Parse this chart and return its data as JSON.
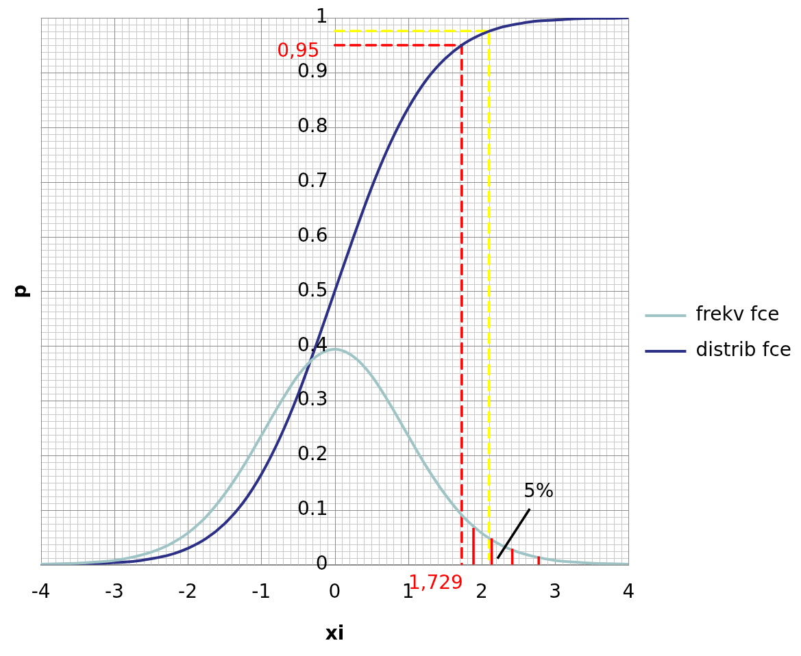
{
  "chart_data": {
    "type": "line",
    "xlabel": "xi",
    "ylabel": "p",
    "x": [
      -4,
      -3.75,
      -3.5,
      -3.25,
      -3,
      -2.75,
      -2.5,
      -2.25,
      -2,
      -1.75,
      -1.5,
      -1.25,
      -1,
      -0.75,
      -0.5,
      -0.25,
      0,
      0.25,
      0.5,
      0.75,
      1,
      1.25,
      1.5,
      1.75,
      2,
      2.25,
      2.5,
      2.75,
      3,
      3.25,
      3.5,
      3.75,
      4
    ],
    "series": [
      {
        "name": "frekv fce",
        "color": "#9fc4c6",
        "values": [
          0.001,
          0.002,
          0.003,
          0.005,
          0.008,
          0.014,
          0.023,
          0.037,
          0.058,
          0.088,
          0.129,
          0.179,
          0.236,
          0.294,
          0.346,
          0.381,
          0.394,
          0.381,
          0.346,
          0.294,
          0.236,
          0.179,
          0.129,
          0.088,
          0.058,
          0.037,
          0.023,
          0.014,
          0.008,
          0.005,
          0.003,
          0.002,
          0.001
        ]
      },
      {
        "name": "distrib fce",
        "color": "#2b2f86",
        "values": [
          0,
          0.001,
          0.001,
          0.002,
          0.004,
          0.006,
          0.011,
          0.018,
          0.03,
          0.048,
          0.075,
          0.113,
          0.165,
          0.231,
          0.311,
          0.403,
          0.5,
          0.597,
          0.689,
          0.769,
          0.835,
          0.887,
          0.925,
          0.952,
          0.97,
          0.982,
          0.989,
          0.994,
          0.996,
          0.998,
          0.999,
          0.999,
          1
        ]
      },
      {
        "color": "#ff0000",
        "line_style": "dashed",
        "x": [
          0,
          1.729,
          1.729
        ],
        "values": [
          0.95,
          0.95,
          0
        ]
      },
      {
        "color": "#ffff00",
        "line_style": "dashed",
        "x": [
          0,
          2.1,
          2.1
        ],
        "values": [
          0.976,
          0.976,
          0.01
        ]
      }
    ],
    "xlim": [
      -4,
      4
    ],
    "xticks": [
      -4,
      -3,
      -2,
      -1,
      0,
      1,
      2,
      3,
      4
    ],
    "ylim": [
      0,
      1
    ],
    "yticks": [
      0,
      0.1,
      0.2,
      0.3,
      0.4,
      0.5,
      0.6,
      0.7,
      0.8,
      0.9,
      1
    ],
    "grid": true,
    "legend": "right",
    "marker": "none",
    "line_style": "solid",
    "annotations": [
      {
        "text": "0,95",
        "x": 0,
        "y": 0.95
      },
      {
        "text": "1,729",
        "x": 1.729,
        "y": 0
      },
      "5%"
    ]
  }
}
